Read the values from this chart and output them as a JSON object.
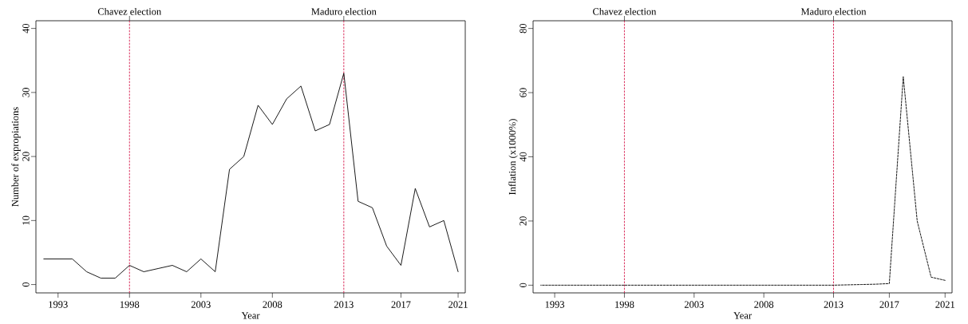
{
  "chart_data": [
    {
      "type": "line",
      "xlabel": "Year",
      "ylabel": "Number of expropiations",
      "x": [
        1992,
        1993,
        1994,
        1995,
        1996,
        1997,
        1998,
        1999,
        2000,
        2001,
        2002,
        2003,
        2004,
        2005,
        2006,
        2007,
        2008,
        2009,
        2010,
        2011,
        2012,
        2013,
        2014,
        2015,
        2016,
        2017,
        2018,
        2019,
        2020,
        2021
      ],
      "series": [
        {
          "color": "#000000",
          "values": [
            4,
            4,
            4,
            2,
            1,
            1,
            3,
            2,
            2.5,
            3,
            2,
            4,
            2,
            18,
            20,
            28,
            25,
            29,
            31,
            24,
            25,
            33,
            13,
            12,
            6,
            3,
            15,
            9,
            10,
            2
          ]
        }
      ],
      "xlim": [
        1991.45,
        2021.5
      ],
      "ylim": [
        -1.3,
        41.2
      ],
      "xticks": [
        1993,
        1998,
        2003,
        2008,
        2013,
        2017,
        2021
      ],
      "yticks": [
        0,
        10,
        20,
        30,
        40
      ],
      "line_style": "solid",
      "ref_lines": [
        {
          "axis": "x",
          "value": 1998,
          "label": "Chavez election",
          "color": "#d6194b",
          "line_style": "dashed"
        },
        {
          "axis": "x",
          "value": 2013,
          "label": "Maduro election",
          "color": "#d6194b",
          "line_style": "dashed"
        }
      ]
    },
    {
      "type": "line",
      "xlabel": "Year",
      "ylabel": "Inflation (x1000%)",
      "x": [
        1992,
        1993,
        1994,
        1995,
        1996,
        1997,
        1998,
        1999,
        2000,
        2001,
        2002,
        2003,
        2004,
        2005,
        2006,
        2007,
        2008,
        2009,
        2010,
        2011,
        2012,
        2013,
        2014,
        2015,
        2016,
        2017,
        2018,
        2019,
        2020,
        2021
      ],
      "series": [
        {
          "color": "#000000",
          "values": [
            0,
            0,
            0,
            0,
            0,
            0,
            0,
            0,
            0,
            0,
            0,
            0,
            0,
            0,
            0,
            0,
            0,
            0,
            0,
            0,
            0,
            0,
            0.1,
            0.2,
            0.3,
            0.5,
            65,
            20,
            2.5,
            1.5
          ]
        }
      ],
      "xlim": [
        1991.45,
        2021.5
      ],
      "ylim": [
        -2.4,
        82.4
      ],
      "xticks": [
        1993,
        1998,
        2003,
        2008,
        2013,
        2017,
        2021
      ],
      "yticks": [
        0,
        20,
        40,
        60,
        80
      ],
      "line_style": "dashed",
      "ref_lines": [
        {
          "axis": "x",
          "value": 1998,
          "label": "Chavez election",
          "color": "#d6194b",
          "line_style": "dashed"
        },
        {
          "axis": "x",
          "value": 2013,
          "label": "Maduro election",
          "color": "#d6194b",
          "line_style": "dashed"
        }
      ]
    }
  ]
}
